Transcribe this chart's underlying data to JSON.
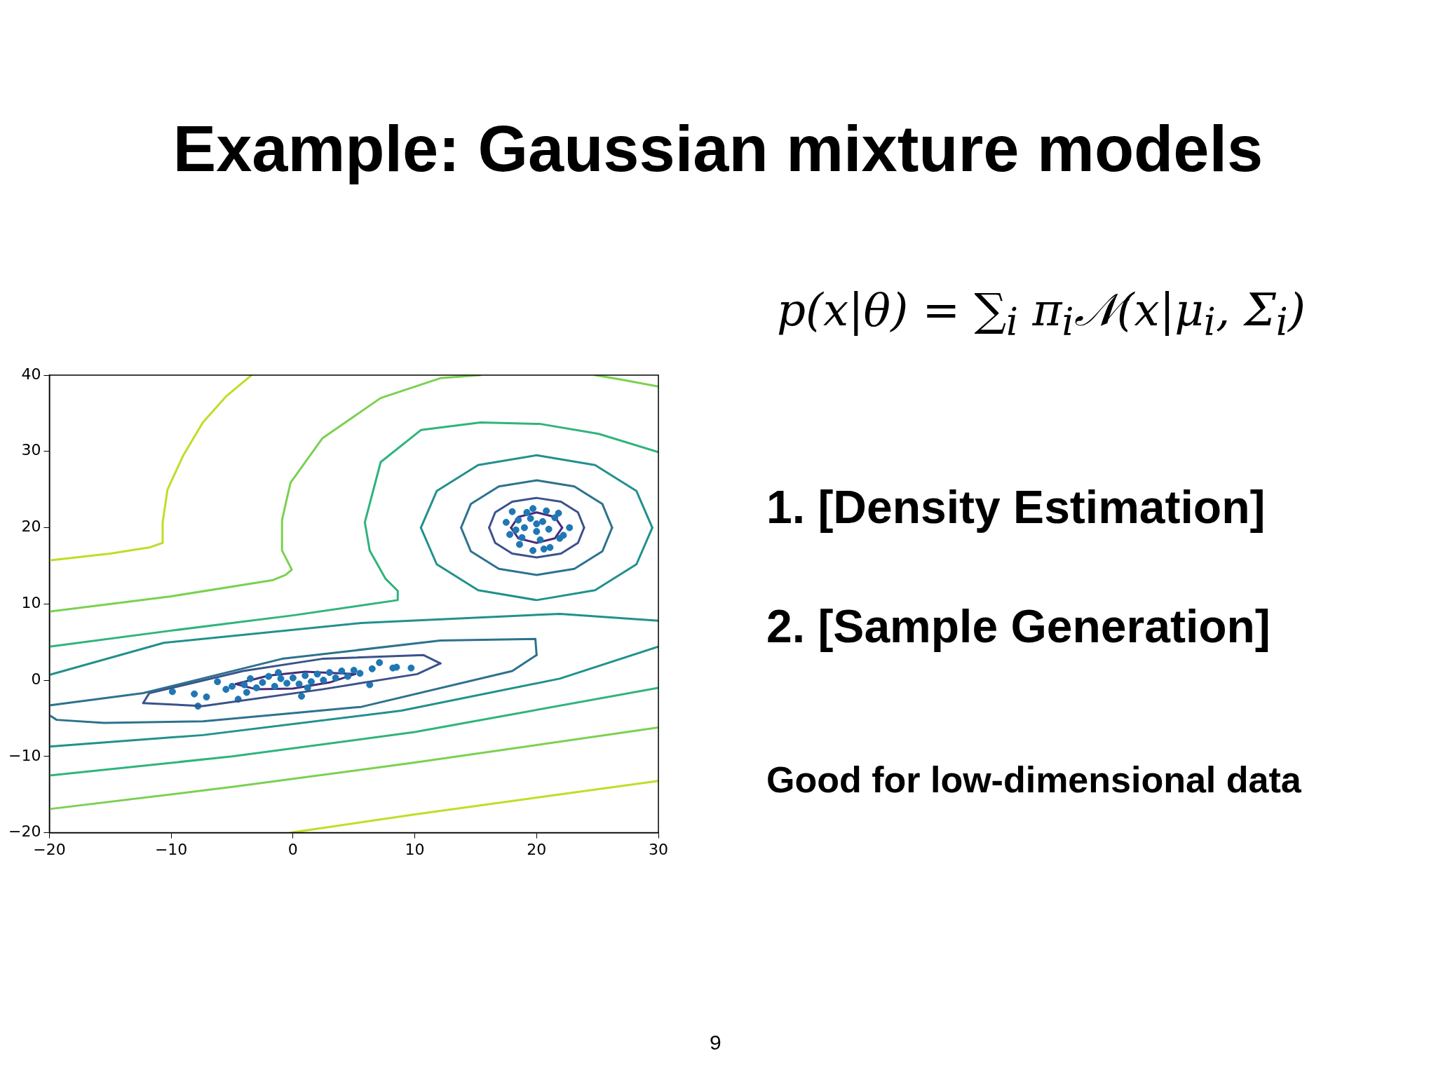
{
  "chart_data": {
    "type": "line",
    "title": "Example: Gaussian mixture models",
    "annotations": [
      "p(x|θ) = ∑$_{i}$ π$_{i}$𝒩(x|μ$_{i}$, Σ$_{i}$)",
      "1. [Density Estimation]",
      "2. [Sample Generation]",
      "Good for low-dimensional data",
      "9"
    ],
    "xlim": [
      -20,
      30
    ],
    "xticks": [
      -20,
      -10,
      0,
      10,
      20,
      30
    ],
    "ylim": [
      -20,
      40
    ],
    "yticks": [
      -20,
      -10,
      0,
      10,
      20,
      30,
      40
    ],
    "grid": false,
    "legend": false,
    "series": [
      {
        "color": "#bddf26",
        "x": [
          -20,
          -15,
          -11.8,
          -10.7,
          -10.7,
          -10.3,
          -9,
          -7.4,
          -5.5,
          -3.4
        ],
        "values": [
          15.7,
          16.6,
          17.4,
          18,
          20.7,
          25,
          29.5,
          33.8,
          37.2,
          40
        ]
      },
      {
        "color": "#bddf26",
        "x": [
          -0.2,
          10,
          20,
          30
        ],
        "values": [
          -20,
          -17.6,
          -15.4,
          -13.2
        ]
      },
      {
        "color": "#7ad151",
        "x": [
          -20,
          -10,
          -1.7,
          -0.6,
          -0.1,
          -0.9,
          -0.9,
          -0.2,
          2.4,
          7.2,
          12.1,
          15.4
        ],
        "values": [
          9,
          11,
          13.1,
          13.8,
          14.5,
          17,
          21,
          25.9,
          31.7,
          37,
          39.6,
          40
        ]
      },
      {
        "color": "#7ad151",
        "x": [
          24.8,
          27,
          30
        ],
        "values": [
          40,
          39.4,
          38.5
        ]
      },
      {
        "color": "#7ad151",
        "x": [
          -20,
          -5,
          10,
          30
        ],
        "values": [
          -16.9,
          -14,
          -10.8,
          -6.2
        ]
      },
      {
        "color": "#2fb47c",
        "x": [
          -20,
          -10,
          0,
          8.6,
          8.6,
          7.6,
          6.3,
          5.9,
          7.2,
          10.5,
          15.4,
          20.3,
          25.1,
          30
        ],
        "values": [
          4.4,
          6.5,
          8.5,
          10.5,
          11.7,
          13.3,
          17,
          20.7,
          28.6,
          32.8,
          33.8,
          33.6,
          32.3,
          29.9
        ]
      },
      {
        "color": "#2fb47c",
        "x": [
          -20,
          -5,
          10,
          30
        ],
        "values": [
          -12.5,
          -10,
          -6.8,
          -1
        ]
      },
      {
        "color": "#21918c",
        "x": [
          -20,
          -10.6,
          5.6,
          21.9,
          30
        ],
        "values": [
          0.7,
          4.9,
          7.5,
          8.7,
          7.8
        ]
      },
      {
        "color": "#21918c",
        "x": [
          -20,
          -7.4,
          8.9,
          21.9,
          30
        ],
        "values": [
          -8.7,
          -7.2,
          -4,
          0.2,
          4.4
        ]
      },
      {
        "color": "#21918c",
        "x": [
          10.5,
          11.8,
          15.2,
          20,
          24.8,
          28.2,
          29.5
        ],
        "values": [
          20,
          24.8,
          28.2,
          29.5,
          28.2,
          24.8,
          20
        ]
      },
      {
        "color": "#21918c",
        "x": [
          10.5,
          11.8,
          15.2,
          20,
          24.8,
          28.2,
          29.5
        ],
        "values": [
          20,
          15.2,
          11.8,
          10.5,
          11.8,
          15.2,
          20
        ]
      },
      {
        "color": "#2c728e",
        "x": [
          13.8,
          14.6,
          16.9,
          20,
          23.1,
          25.4,
          26.2
        ],
        "values": [
          20,
          23.1,
          25.4,
          26.2,
          25.4,
          23.1,
          20
        ]
      },
      {
        "color": "#2c728e",
        "x": [
          13.8,
          14.6,
          16.9,
          20,
          23.1,
          25.4,
          26.2
        ],
        "values": [
          20,
          16.9,
          14.6,
          13.8,
          14.6,
          16.9,
          20
        ]
      },
      {
        "color": "#3b528b",
        "x": [
          16.1,
          16.6,
          18,
          20,
          22,
          23.4,
          23.9
        ],
        "values": [
          20,
          22,
          23.4,
          23.9,
          23.4,
          22,
          20
        ]
      },
      {
        "color": "#3b528b",
        "x": [
          16.1,
          16.6,
          18,
          20,
          22,
          23.4,
          23.9
        ],
        "values": [
          20,
          18,
          16.6,
          16.1,
          16.6,
          18,
          20
        ]
      },
      {
        "color": "#2c728e",
        "x": [
          -20,
          -12.3,
          -0.9,
          12.1,
          19.9,
          20
        ],
        "values": [
          -3.3,
          -1.7,
          2.8,
          5.2,
          5.4,
          3.3
        ]
      },
      {
        "color": "#2c728e",
        "x": [
          -20,
          -19.4,
          -15.5,
          -7.4,
          5.6,
          18,
          20
        ],
        "values": [
          -4.6,
          -5.2,
          -5.6,
          -5.4,
          -3.5,
          1.2,
          3.3
        ]
      },
      {
        "color": "#3b528b",
        "x": [
          -12.3,
          -11.8,
          -4.1,
          2.4,
          10.7,
          12.1
        ],
        "values": [
          -3,
          -1.7,
          1.2,
          2.8,
          3.3,
          2.2
        ]
      },
      {
        "color": "#3b528b",
        "x": [
          -12.3,
          -7.4,
          2.4,
          10.2,
          12.1
        ],
        "values": [
          -3,
          -3.4,
          -1.2,
          0.8,
          2.2
        ]
      },
      {
        "type": "scatter",
        "color": "#1f77b4",
        "marker": "circle",
        "x": [
          -9.9,
          -8.1,
          -7.8,
          -7.1,
          -6.2,
          -5.5,
          -5,
          -4.5,
          -4,
          -3.5,
          -3,
          -2.5,
          -2,
          -1.5,
          -1,
          -0.5,
          0,
          0.5,
          0.7,
          1,
          1.5,
          2,
          2.5,
          3,
          3.5,
          4,
          4.5,
          5,
          5.5,
          6.3,
          6.5,
          7.1,
          8.2,
          8.5,
          9.7,
          -3.8,
          1.2,
          -1.2,
          17.5,
          18,
          19.7,
          21.1,
          22.7,
          21.9,
          19.7,
          17.8,
          18.5,
          19,
          19.5,
          20,
          20.5,
          21,
          21.5,
          20.3,
          18.8,
          21.8,
          19.2,
          20.8,
          22.2,
          18.3,
          20,
          20.6,
          18.6
        ],
        "values": [
          -1.5,
          -1.8,
          -3.4,
          -2.2,
          -0.2,
          -1.2,
          -0.8,
          -2.5,
          -0.6,
          0.2,
          -1,
          -0.3,
          0.5,
          -0.8,
          0.2,
          -0.4,
          0.3,
          -0.5,
          -2.1,
          0.6,
          -0.2,
          0.8,
          0,
          1,
          0.3,
          1.2,
          0.5,
          1.3,
          0.9,
          -0.6,
          1.5,
          2.3,
          1.6,
          1.7,
          1.6,
          -1.6,
          -1,
          1,
          20.7,
          22.1,
          17,
          17.4,
          20,
          18.6,
          22.5,
          19.1,
          21,
          20,
          21.2,
          19.5,
          20.8,
          19.8,
          21.3,
          18.4,
          18.7,
          21.9,
          22,
          22.2,
          19,
          19.7,
          20.5,
          17.2,
          17.8
        ]
      },
      {
        "color": "#472c7a",
        "x": [
          17.9,
          18.5,
          20,
          21.5,
          22.1
        ],
        "values": [
          20,
          21.4,
          22,
          21.4,
          20
        ]
      },
      {
        "color": "#472c7a",
        "x": [
          17.9,
          18.5,
          20,
          21.5,
          22.1
        ],
        "values": [
          20,
          18.6,
          18,
          18.6,
          20
        ]
      },
      {
        "color": "#472c7a",
        "x": [
          -4.7,
          -2,
          1,
          5.1
        ],
        "values": [
          -0.5,
          0.6,
          1.1,
          0.8
        ]
      },
      {
        "color": "#472c7a",
        "x": [
          -4.7,
          -3,
          0,
          3,
          5.1
        ],
        "values": [
          -0.5,
          -1.2,
          -1.1,
          -0.3,
          0.8
        ]
      }
    ]
  }
}
